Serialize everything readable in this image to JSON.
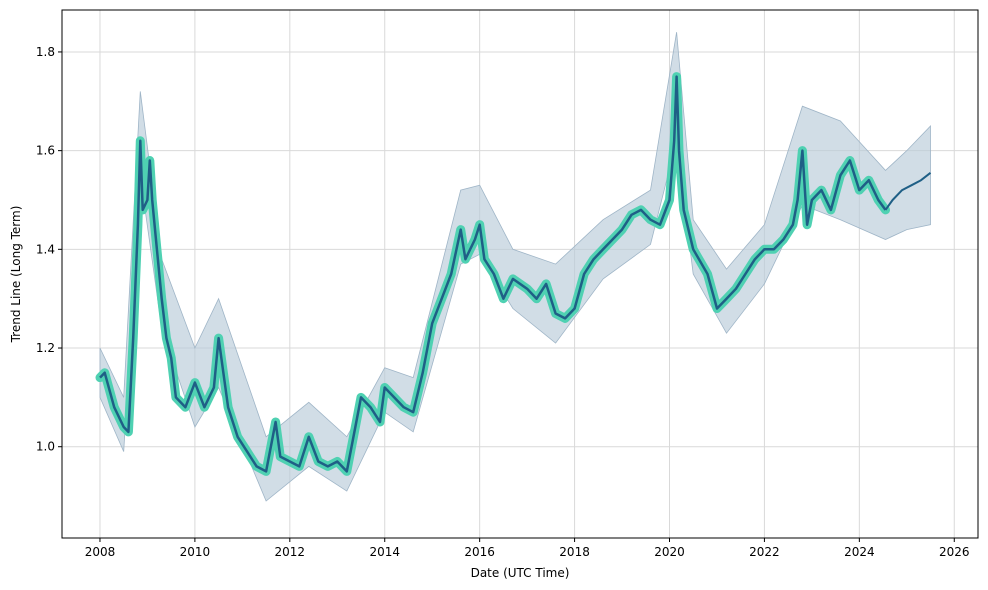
{
  "chart_data": {
    "type": "line",
    "title": "",
    "xlabel": "Date (UTC Time)",
    "ylabel": "Trend Line (Long Term)",
    "xlim": [
      2007.2,
      2026.5
    ],
    "ylim": [
      0.815,
      1.885
    ],
    "grid": true,
    "legend": "none",
    "x_ticks": [
      2008,
      2010,
      2012,
      2014,
      2016,
      2018,
      2020,
      2022,
      2024,
      2026
    ],
    "x_tick_labels": [
      "2008",
      "2010",
      "2012",
      "2014",
      "2016",
      "2018",
      "2020",
      "2022",
      "2024",
      "2026"
    ],
    "y_ticks": [
      1.0,
      1.2,
      1.4,
      1.6,
      1.8
    ],
    "y_tick_labels": [
      "1.0",
      "1.2",
      "1.4",
      "1.6",
      "1.8"
    ],
    "colors": {
      "trend_line": "#1f5f86",
      "highlight": "#4fd1b2",
      "band_fill": "#b8cbd9",
      "band_edge": "#9fb5c7",
      "grid": "#d9d9d9"
    },
    "series": [
      {
        "role": "historical_trend",
        "x": [
          2008.0,
          2008.1,
          2008.3,
          2008.5,
          2008.6,
          2008.7,
          2008.8,
          2008.85,
          2008.9,
          2009.0,
          2009.05,
          2009.1,
          2009.2,
          2009.3,
          2009.4,
          2009.5,
          2009.6,
          2009.8,
          2010.0,
          2010.2,
          2010.4,
          2010.5,
          2010.7,
          2010.9,
          2011.1,
          2011.3,
          2011.5,
          2011.7,
          2011.8,
          2012.0,
          2012.2,
          2012.4,
          2012.6,
          2012.8,
          2013.0,
          2013.2,
          2013.4,
          2013.5,
          2013.7,
          2013.9,
          2014.0,
          2014.2,
          2014.4,
          2014.6,
          2014.8,
          2015.0,
          2015.2,
          2015.4,
          2015.6,
          2015.7,
          2015.9,
          2016.0,
          2016.1,
          2016.3,
          2016.5,
          2016.7,
          2017.0,
          2017.2,
          2017.4,
          2017.6,
          2017.8,
          2018.0,
          2018.2,
          2018.4,
          2018.6,
          2018.8,
          2019.0,
          2019.2,
          2019.4,
          2019.6,
          2019.8,
          2020.0,
          2020.1,
          2020.15,
          2020.2,
          2020.3,
          2020.5,
          2020.8,
          2021.0,
          2021.2,
          2021.4,
          2021.6,
          2021.8,
          2022.0,
          2022.2,
          2022.4,
          2022.6,
          2022.7,
          2022.8,
          2022.9,
          2023.0,
          2023.2,
          2023.4,
          2023.6,
          2023.8,
          2023.9,
          2024.0,
          2024.2,
          2024.4,
          2024.55
        ],
        "y": [
          1.14,
          1.15,
          1.08,
          1.04,
          1.03,
          1.22,
          1.45,
          1.62,
          1.48,
          1.5,
          1.58,
          1.5,
          1.4,
          1.3,
          1.22,
          1.18,
          1.1,
          1.08,
          1.13,
          1.08,
          1.12,
          1.22,
          1.08,
          1.02,
          0.99,
          0.96,
          0.95,
          1.05,
          0.98,
          0.97,
          0.96,
          1.02,
          0.97,
          0.96,
          0.97,
          0.95,
          1.05,
          1.1,
          1.08,
          1.05,
          1.12,
          1.1,
          1.08,
          1.07,
          1.15,
          1.25,
          1.3,
          1.35,
          1.44,
          1.38,
          1.42,
          1.45,
          1.38,
          1.35,
          1.3,
          1.34,
          1.32,
          1.3,
          1.33,
          1.27,
          1.26,
          1.28,
          1.35,
          1.38,
          1.4,
          1.42,
          1.44,
          1.47,
          1.48,
          1.46,
          1.45,
          1.5,
          1.62,
          1.75,
          1.6,
          1.48,
          1.4,
          1.35,
          1.28,
          1.3,
          1.32,
          1.35,
          1.38,
          1.4,
          1.4,
          1.42,
          1.45,
          1.5,
          1.6,
          1.45,
          1.5,
          1.52,
          1.48,
          1.55,
          1.58,
          1.55,
          1.52,
          1.54,
          1.5,
          1.48
        ]
      },
      {
        "role": "forecast",
        "x": [
          2024.55,
          2024.7,
          2024.9,
          2025.1,
          2025.3,
          2025.5
        ],
        "y": [
          1.48,
          1.5,
          1.52,
          1.53,
          1.54,
          1.555
        ]
      }
    ],
    "band": {
      "x": [
        2008.0,
        2008.5,
        2008.85,
        2009.3,
        2010.0,
        2010.5,
        2011.5,
        2012.4,
        2013.2,
        2014.0,
        2014.6,
        2015.6,
        2016.0,
        2016.7,
        2017.6,
        2018.6,
        2019.6,
        2020.15,
        2020.5,
        2021.2,
        2022.0,
        2022.8,
        2023.6,
        2024.55,
        2025.0,
        2025.5
      ],
      "lower": [
        1.1,
        0.99,
        1.55,
        1.24,
        1.04,
        1.12,
        0.89,
        0.96,
        0.91,
        1.07,
        1.03,
        1.37,
        1.39,
        1.28,
        1.21,
        1.34,
        1.41,
        1.62,
        1.35,
        1.23,
        1.33,
        1.49,
        1.46,
        1.42,
        1.44,
        1.45
      ],
      "upper": [
        1.2,
        1.1,
        1.72,
        1.38,
        1.2,
        1.3,
        1.02,
        1.09,
        1.02,
        1.16,
        1.14,
        1.52,
        1.53,
        1.4,
        1.37,
        1.46,
        1.52,
        1.84,
        1.46,
        1.36,
        1.45,
        1.69,
        1.66,
        1.56,
        1.6,
        1.65
      ]
    }
  }
}
